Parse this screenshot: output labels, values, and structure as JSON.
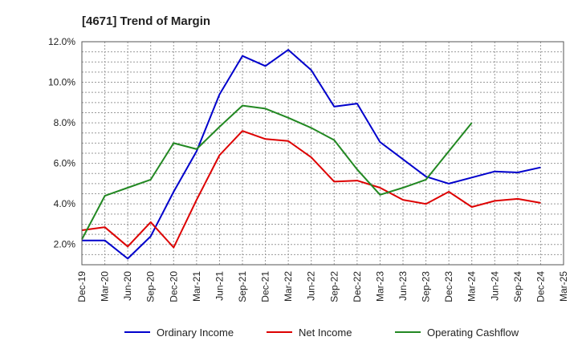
{
  "chart_data": {
    "type": "line",
    "title": "[4671]  Trend of Margin",
    "xlabel": "",
    "ylabel": "",
    "categories": [
      "Dec-19",
      "Mar-20",
      "Jun-20",
      "Sep-20",
      "Dec-20",
      "Mar-21",
      "Jun-21",
      "Sep-21",
      "Dec-21",
      "Mar-22",
      "Jun-22",
      "Sep-22",
      "Dec-22",
      "Mar-23",
      "Jun-23",
      "Sep-23",
      "Dec-23",
      "Mar-24",
      "Jun-24",
      "Sep-24",
      "Dec-24",
      "Mar-25"
    ],
    "y_ticks": [
      "2.0%",
      "4.0%",
      "6.0%",
      "8.0%",
      "10.0%",
      "12.0%"
    ],
    "ylim": [
      1.0,
      12.0
    ],
    "grid": true,
    "legend_position": "bottom",
    "series": [
      {
        "name": "Ordinary Income",
        "color": "#0000cc",
        "values": [
          2.2,
          2.2,
          1.3,
          2.4,
          4.6,
          6.6,
          9.4,
          11.3,
          10.8,
          11.6,
          10.6,
          8.8,
          8.95,
          7.05,
          6.2,
          5.35,
          5.0,
          5.3,
          5.6,
          5.55,
          5.8,
          null
        ]
      },
      {
        "name": "Net Income",
        "color": "#dd0000",
        "values": [
          2.7,
          2.85,
          1.9,
          3.1,
          1.85,
          4.2,
          6.4,
          7.6,
          7.2,
          7.1,
          6.3,
          5.1,
          5.15,
          4.8,
          4.2,
          4.0,
          4.6,
          3.85,
          4.15,
          4.25,
          4.05,
          null
        ]
      },
      {
        "name": "Operating Cashflow",
        "color": "#228822",
        "values": [
          2.25,
          4.4,
          4.8,
          5.2,
          7.0,
          6.7,
          7.8,
          8.85,
          8.7,
          8.25,
          7.75,
          7.15,
          5.7,
          4.45,
          4.8,
          5.2,
          6.6,
          8.0,
          null,
          null,
          null,
          null
        ]
      }
    ]
  }
}
